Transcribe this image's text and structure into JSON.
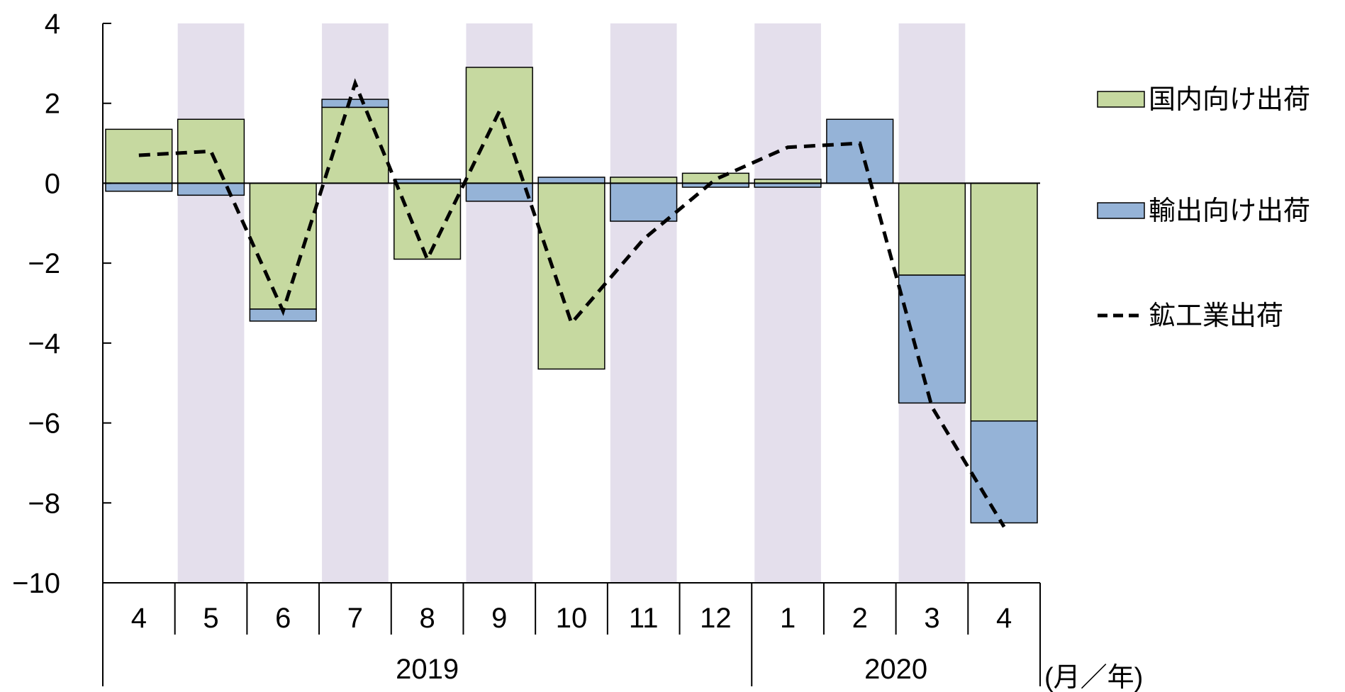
{
  "chart_data": {
    "type": "bar",
    "stacked": true,
    "categories": [
      "4",
      "5",
      "6",
      "7",
      "8",
      "9",
      "10",
      "11",
      "12",
      "1",
      "2",
      "3",
      "4"
    ],
    "year_groups": [
      {
        "label": "2019",
        "start": 0,
        "end": 8
      },
      {
        "label": "2020",
        "start": 9,
        "end": 12
      }
    ],
    "unit_label": "(月／年)",
    "ylim": [
      -10,
      4
    ],
    "yticks": [
      4,
      2,
      0,
      -2,
      -4,
      -6,
      -8,
      -10
    ],
    "ytick_labels": [
      "4",
      "2",
      "0",
      "−2",
      "−4",
      "−6",
      "−8",
      "−10"
    ],
    "shaded_categories": [
      1,
      3,
      5,
      7,
      9,
      11
    ],
    "series": [
      {
        "name": "国内向け出荷",
        "kind": "bar",
        "color": "#c6d9a0",
        "values": [
          1.35,
          1.6,
          -3.15,
          1.9,
          -1.9,
          2.9,
          -4.65,
          0.15,
          0.25,
          0.1,
          0.0,
          -2.3,
          -5.95
        ]
      },
      {
        "name": "輸出向け出荷",
        "kind": "bar",
        "color": "#95b3d7",
        "values": [
          -0.2,
          -0.3,
          -0.3,
          0.2,
          0.1,
          -0.45,
          0.15,
          -0.95,
          -0.1,
          -0.1,
          1.6,
          -3.2,
          -2.55
        ]
      },
      {
        "name": "鉱工業出荷",
        "kind": "line",
        "style": "dashed",
        "color": "#000000",
        "values": [
          0.7,
          0.8,
          -3.2,
          2.5,
          -1.9,
          1.8,
          -3.5,
          -1.4,
          0.1,
          0.9,
          1.0,
          -5.6,
          -8.6
        ]
      }
    ],
    "legend_position": "right",
    "shade_color": "#e4dfec"
  }
}
